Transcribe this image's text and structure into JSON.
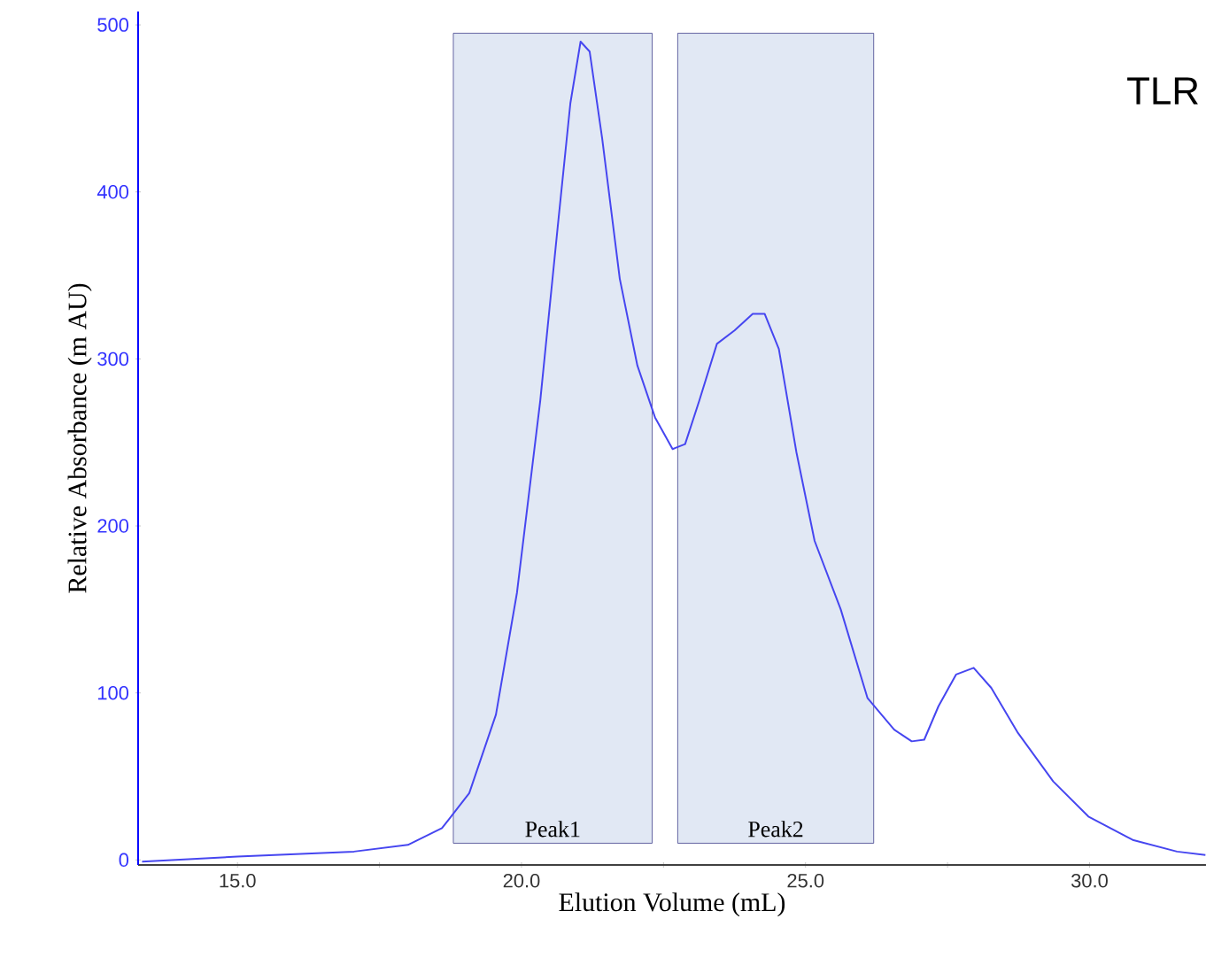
{
  "chart_data": {
    "type": "line",
    "xlabel": "Elution Volume (mL)",
    "ylabel": "Relative Absorbance (m AU)",
    "annotations": [
      "TLR"
    ],
    "xlim": [
      13.25,
      32.05
    ],
    "ylim": [
      -3,
      508
    ],
    "xticks": [
      {
        "value": 15,
        "label": "15.0"
      },
      {
        "value": 17.5,
        "label": null
      },
      {
        "value": 20,
        "label": "20.0"
      },
      {
        "value": 22.5,
        "label": null
      },
      {
        "value": 25,
        "label": "25.0"
      },
      {
        "value": 27.5,
        "label": null
      },
      {
        "value": 30,
        "label": "30.0"
      }
    ],
    "yticks": [
      0,
      100,
      200,
      300,
      400,
      500
    ],
    "bands": [
      {
        "axis": "x",
        "from": 18.8,
        "to": 22.3,
        "label": "Peak1",
        "color": "#e1e8f4"
      },
      {
        "axis": "x",
        "from": 22.75,
        "to": 26.2,
        "label": "Peak2",
        "color": "#e1e8f4"
      }
    ],
    "x": [
      13.32,
      15,
      17.05,
      18.0,
      18.6,
      19.08,
      19.55,
      19.92,
      20.33,
      20.64,
      20.86,
      21.04,
      21.2,
      21.42,
      21.73,
      22.04,
      22.35,
      22.66,
      22.88,
      23.13,
      23.44,
      23.75,
      24.07,
      24.28,
      24.53,
      24.84,
      25.16,
      25.62,
      26.09,
      26.56,
      26.87,
      27.09,
      27.34,
      27.65,
      27.96,
      28.27,
      28.74,
      29.36,
      29.98,
      30.76,
      31.54,
      32.04
    ],
    "series": [
      {
        "color": "#4646f0",
        "values": [
          -1,
          2,
          5,
          9,
          19,
          40,
          87,
          160,
          275,
          380,
          453,
          490,
          484,
          432,
          348,
          296,
          265,
          246,
          249,
          275,
          309,
          317,
          327,
          327,
          306,
          244,
          191,
          150,
          97,
          78,
          71,
          72,
          92,
          111,
          115,
          103,
          76,
          47,
          26,
          12,
          5,
          3
        ]
      }
    ],
    "marker": "none",
    "line_style": "solid"
  }
}
